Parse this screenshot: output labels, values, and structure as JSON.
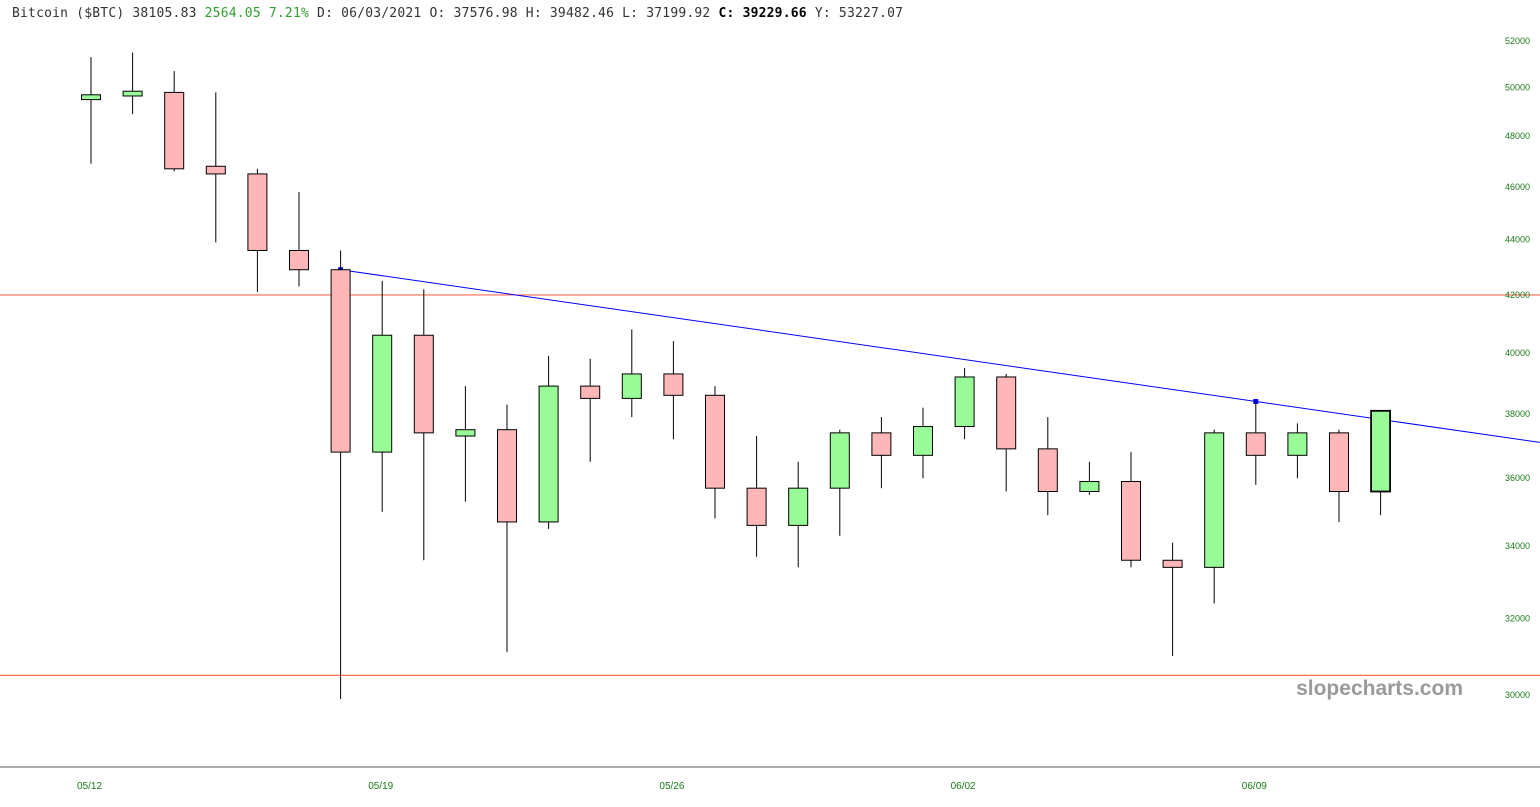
{
  "header": {
    "name": "Bitcoin ($BTC)",
    "last": "38105.83",
    "change": "2564.05",
    "change_pct": "7.21%",
    "date_label": "D:",
    "date": "06/03/2021",
    "open_label": "O:",
    "open": "37576.98",
    "high_label": "H:",
    "high": "39482.46",
    "low_label": "L:",
    "low": "37199.92",
    "close_label": "C:",
    "close": "39229.66",
    "y_label": "Y:",
    "y_value": "53227.07"
  },
  "watermark": "slopecharts.com",
  "colors": {
    "up_fill": "#98fb98",
    "down_fill": "#ffb6b6",
    "outline": "#000000",
    "header_green": "#2e9e2e",
    "trendline": "#0000ff",
    "hline": "#ff6a50",
    "tick_text": "#1a7a1a"
  },
  "chart_data": {
    "type": "candlestick",
    "title": "Bitcoin ($BTC)",
    "xlabel": "",
    "ylabel": "",
    "y_scale": "log",
    "ylim": [
      29500,
      52500
    ],
    "yticks": [
      30000,
      32000,
      34000,
      36000,
      38000,
      40000,
      42000,
      44000,
      46000,
      48000,
      50000,
      52000
    ],
    "x_ticks": [
      {
        "label": "05/12",
        "index": 0
      },
      {
        "label": "05/19",
        "index": 7
      },
      {
        "label": "05/26",
        "index": 14
      },
      {
        "label": "06/02",
        "index": 21
      },
      {
        "label": "06/09",
        "index": 28
      }
    ],
    "candles": [
      {
        "o": 49500,
        "h": 51300,
        "l": 46900,
        "c": 49700
      },
      {
        "o": 49650,
        "h": 51500,
        "l": 48900,
        "c": 49850
      },
      {
        "o": 49800,
        "h": 50700,
        "l": 46600,
        "c": 46700
      },
      {
        "o": 46800,
        "h": 49800,
        "l": 43900,
        "c": 46500
      },
      {
        "o": 46500,
        "h": 46700,
        "l": 42100,
        "c": 43600
      },
      {
        "o": 43600,
        "h": 45800,
        "l": 42300,
        "c": 42900
      },
      {
        "o": 42900,
        "h": 43600,
        "l": 29900,
        "c": 36800
      },
      {
        "o": 36800,
        "h": 42500,
        "l": 35000,
        "c": 40600
      },
      {
        "o": 40600,
        "h": 42200,
        "l": 33600,
        "c": 37400
      },
      {
        "o": 37300,
        "h": 38900,
        "l": 35300,
        "c": 37500
      },
      {
        "o": 37500,
        "h": 38300,
        "l": 31100,
        "c": 34700
      },
      {
        "o": 34700,
        "h": 39900,
        "l": 34500,
        "c": 38900
      },
      {
        "o": 38900,
        "h": 39800,
        "l": 36500,
        "c": 38500
      },
      {
        "o": 38500,
        "h": 40800,
        "l": 37900,
        "c": 39300
      },
      {
        "o": 39300,
        "h": 40400,
        "l": 37200,
        "c": 38600
      },
      {
        "o": 38600,
        "h": 38900,
        "l": 34800,
        "c": 35700
      },
      {
        "o": 35700,
        "h": 37300,
        "l": 33700,
        "c": 34600
      },
      {
        "o": 34600,
        "h": 36500,
        "l": 33400,
        "c": 35700
      },
      {
        "o": 35700,
        "h": 37500,
        "l": 34300,
        "c": 37400
      },
      {
        "o": 37400,
        "h": 37900,
        "l": 35700,
        "c": 36700
      },
      {
        "o": 36700,
        "h": 38200,
        "l": 36000,
        "c": 37600
      },
      {
        "o": 37600,
        "h": 39500,
        "l": 37200,
        "c": 39200
      },
      {
        "o": 39200,
        "h": 39300,
        "l": 35600,
        "c": 36900
      },
      {
        "o": 36900,
        "h": 37900,
        "l": 34900,
        "c": 35600
      },
      {
        "o": 35600,
        "h": 36500,
        "l": 35500,
        "c": 35900
      },
      {
        "o": 35900,
        "h": 36800,
        "l": 33400,
        "c": 33600
      },
      {
        "o": 33600,
        "h": 34100,
        "l": 31000,
        "c": 33400
      },
      {
        "o": 33400,
        "h": 37500,
        "l": 32400,
        "c": 37400
      },
      {
        "o": 37400,
        "h": 38400,
        "l": 35800,
        "c": 36700
      },
      {
        "o": 36700,
        "h": 37700,
        "l": 36000,
        "c": 37400
      },
      {
        "o": 37400,
        "h": 37500,
        "l": 34700,
        "c": 35600
      },
      {
        "o": 35600,
        "h": 38100,
        "l": 34900,
        "c": 38100
      }
    ],
    "trendline": {
      "from": {
        "index": 6,
        "value": 42900
      },
      "to_through": {
        "index": 28,
        "value": 38400
      }
    },
    "horizontal_lines": [
      42000,
      30500
    ]
  }
}
